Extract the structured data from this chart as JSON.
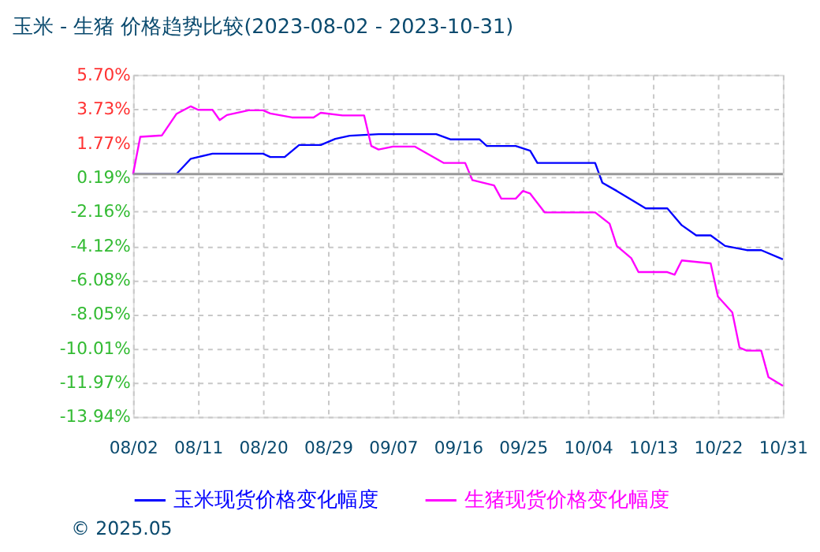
{
  "chart_data": {
    "type": "line",
    "title": "玉米 - 生猪 价格趋势比较(2023-08-02 - 2023-10-31)",
    "series": [
      {
        "name": "玉米现货价格变化幅度",
        "color": "#0000ff",
        "x": [
          "2023-08-02",
          "2023-08-08",
          "2023-08-10",
          "2023-08-13",
          "2023-08-20",
          "2023-08-21",
          "2023-08-23",
          "2023-08-25",
          "2023-08-28",
          "2023-08-30",
          "2023-09-01",
          "2023-09-05",
          "2023-09-13",
          "2023-09-15",
          "2023-09-19",
          "2023-09-20",
          "2023-09-24",
          "2023-09-26",
          "2023-09-27",
          "2023-10-05",
          "2023-10-06",
          "2023-10-08",
          "2023-10-12",
          "2023-10-15",
          "2023-10-17",
          "2023-10-19",
          "2023-10-21",
          "2023-10-23",
          "2023-10-26",
          "2023-10-28",
          "2023-10-31"
        ],
        "values": [
          0,
          0,
          0.88,
          1.17,
          1.17,
          0.98,
          0.98,
          1.67,
          1.67,
          2.02,
          2.2,
          2.29,
          2.29,
          1.99,
          1.99,
          1.61,
          1.61,
          1.34,
          0.64,
          0.64,
          -0.5,
          -0.97,
          -1.97,
          -1.97,
          -2.94,
          -3.52,
          -3.52,
          -4.13,
          -4.37,
          -4.37,
          -4.9
        ]
      },
      {
        "name": "生猪现货价格变化幅度",
        "color": "#ff00ff",
        "x": [
          "2023-08-02",
          "2023-08-03",
          "2023-08-06",
          "2023-08-08",
          "2023-08-10",
          "2023-08-11",
          "2023-08-13",
          "2023-08-14",
          "2023-08-15",
          "2023-08-18",
          "2023-08-20",
          "2023-08-21",
          "2023-08-24",
          "2023-08-27",
          "2023-08-28",
          "2023-08-31",
          "2023-09-03",
          "2023-09-04",
          "2023-09-05",
          "2023-09-07",
          "2023-09-10",
          "2023-09-14",
          "2023-09-17",
          "2023-09-18",
          "2023-09-21",
          "2023-09-22",
          "2023-09-24",
          "2023-09-25",
          "2023-09-26",
          "2023-09-28",
          "2023-10-05",
          "2023-10-07",
          "2023-10-08",
          "2023-10-10",
          "2023-10-11",
          "2023-10-15",
          "2023-10-16",
          "2023-10-17",
          "2023-10-21",
          "2023-10-22",
          "2023-10-24",
          "2023-10-25",
          "2023-10-26",
          "2023-10-28",
          "2023-10-29",
          "2023-10-31"
        ],
        "values": [
          0,
          2.14,
          2.22,
          3.45,
          3.89,
          3.69,
          3.69,
          3.1,
          3.39,
          3.66,
          3.66,
          3.48,
          3.25,
          3.25,
          3.52,
          3.37,
          3.37,
          1.61,
          1.41,
          1.58,
          1.58,
          0.64,
          0.64,
          -0.35,
          -0.65,
          -1.41,
          -1.41,
          -0.97,
          -1.12,
          -2.2,
          -2.2,
          -2.85,
          -4.13,
          -4.83,
          -5.63,
          -5.63,
          -5.78,
          -4.96,
          -5.13,
          -7.03,
          -7.95,
          -9.97,
          -10.14,
          -10.14,
          -11.66,
          -12.16
        ]
      }
    ],
    "xlim": [
      "2023-08-02",
      "2023-10-31"
    ],
    "xticks": [
      {
        "value": "2023-08-02",
        "label": "08/02"
      },
      {
        "value": "2023-08-11",
        "label": "08/11"
      },
      {
        "value": "2023-08-20",
        "label": "08/20"
      },
      {
        "value": "2023-08-29",
        "label": "08/29"
      },
      {
        "value": "2023-09-07",
        "label": "09/07"
      },
      {
        "value": "2023-09-16",
        "label": "09/16"
      },
      {
        "value": "2023-09-25",
        "label": "09/25"
      },
      {
        "value": "2023-10-04",
        "label": "10/04"
      },
      {
        "value": "2023-10-13",
        "label": "10/13"
      },
      {
        "value": "2023-10-22",
        "label": "10/22"
      },
      {
        "value": "2023-10-31",
        "label": "10/31"
      }
    ],
    "ylim": [
      -13.94,
      5.7
    ],
    "yticks": [
      {
        "value": 5.7,
        "label": "5.70%"
      },
      {
        "value": 3.73,
        "label": "3.73%"
      },
      {
        "value": 1.77,
        "label": "1.77%"
      },
      {
        "value": -0.19,
        "label": "0.19%"
      },
      {
        "value": -2.16,
        "label": "-2.16%"
      },
      {
        "value": -4.12,
        "label": "-4.12%"
      },
      {
        "value": -6.08,
        "label": "-6.08%"
      },
      {
        "value": -8.05,
        "label": "-8.05%"
      },
      {
        "value": -10.01,
        "label": "-10.01%"
      },
      {
        "value": -11.97,
        "label": "-11.97%"
      },
      {
        "value": -13.94,
        "label": "-13.94%"
      }
    ],
    "ref_lines": [
      {
        "axis": "y",
        "value": 0,
        "color": "#999999"
      }
    ],
    "grid": true,
    "legend": "bottom",
    "line_style": "solid",
    "marker": "none",
    "annotations": [
      "© 2025.05"
    ]
  }
}
